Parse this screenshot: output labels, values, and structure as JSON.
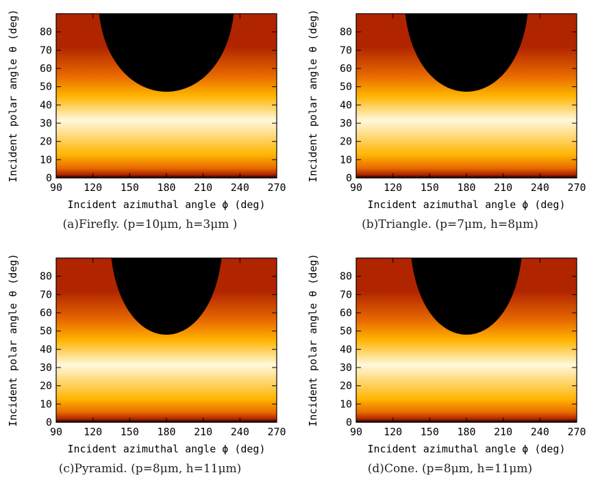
{
  "chart_data": [
    {
      "type": "heatmap",
      "caption": "(a)Firefly. (p=10μm, h=3μm )",
      "xlabel": "Incident azimuthal angle ϕ (deg)",
      "ylabel": "Incident polar angle θ (deg)",
      "xlim": [
        90,
        270
      ],
      "ylim": [
        0,
        90
      ],
      "xticks": [
        "90",
        "120",
        "150",
        "180",
        "210",
        "240",
        "270"
      ],
      "yticks": [
        "0",
        "10",
        "20",
        "30",
        "40",
        "50",
        "60",
        "70",
        "80"
      ],
      "dark_region_min_theta": 39,
      "dark_region_edge_phi_at_top": [
        125,
        235
      ],
      "colormap": [
        "#000000",
        "#b02400",
        "#e86a00",
        "#ffb400",
        "#fff8dc"
      ]
    },
    {
      "type": "heatmap",
      "caption": "(b)Triangle. (p=7μm, h=8μm)",
      "xlabel": "Incident azimuthal angle ϕ (deg)",
      "ylabel": "Incident polar angle θ (deg)",
      "xlim": [
        90,
        270
      ],
      "ylim": [
        0,
        90
      ],
      "xticks": [
        "90",
        "120",
        "150",
        "180",
        "210",
        "240",
        "270"
      ],
      "yticks": [
        "0",
        "10",
        "20",
        "30",
        "40",
        "50",
        "60",
        "70",
        "80"
      ],
      "dark_region_min_theta": 39,
      "dark_region_edge_phi_at_top": [
        130,
        230
      ],
      "colormap": [
        "#000000",
        "#b02400",
        "#e86a00",
        "#ffb400",
        "#fff8dc"
      ]
    },
    {
      "type": "heatmap",
      "caption": "(c)Pyramid. (p=8μm, h=11μm)",
      "xlabel": "Incident azimuthal angle ϕ (deg)",
      "ylabel": "Incident polar angle θ (deg)",
      "xlim": [
        90,
        270
      ],
      "ylim": [
        0,
        90
      ],
      "xticks": [
        "90",
        "120",
        "150",
        "180",
        "210",
        "240",
        "270"
      ],
      "yticks": [
        "0",
        "10",
        "20",
        "30",
        "40",
        "50",
        "60",
        "70",
        "80"
      ],
      "dark_region_min_theta": 40,
      "dark_region_edge_phi_at_top": [
        135,
        225
      ],
      "colormap": [
        "#000000",
        "#b02400",
        "#e86a00",
        "#ffb400",
        "#fff8dc"
      ]
    },
    {
      "type": "heatmap",
      "caption": "(d)Cone. (p=8μm, h=11μm)",
      "xlabel": "Incident azimuthal angle ϕ (deg)",
      "ylabel": "Incident polar angle θ (deg)",
      "xlim": [
        90,
        270
      ],
      "ylim": [
        0,
        90
      ],
      "xticks": [
        "90",
        "120",
        "150",
        "180",
        "210",
        "240",
        "270"
      ],
      "yticks": [
        "0",
        "10",
        "20",
        "30",
        "40",
        "50",
        "60",
        "70",
        "80"
      ],
      "dark_region_min_theta": 40,
      "dark_region_edge_phi_at_top": [
        135,
        225
      ],
      "colormap": [
        "#000000",
        "#b02400",
        "#e86a00",
        "#ffb400",
        "#fff8dc"
      ]
    }
  ]
}
